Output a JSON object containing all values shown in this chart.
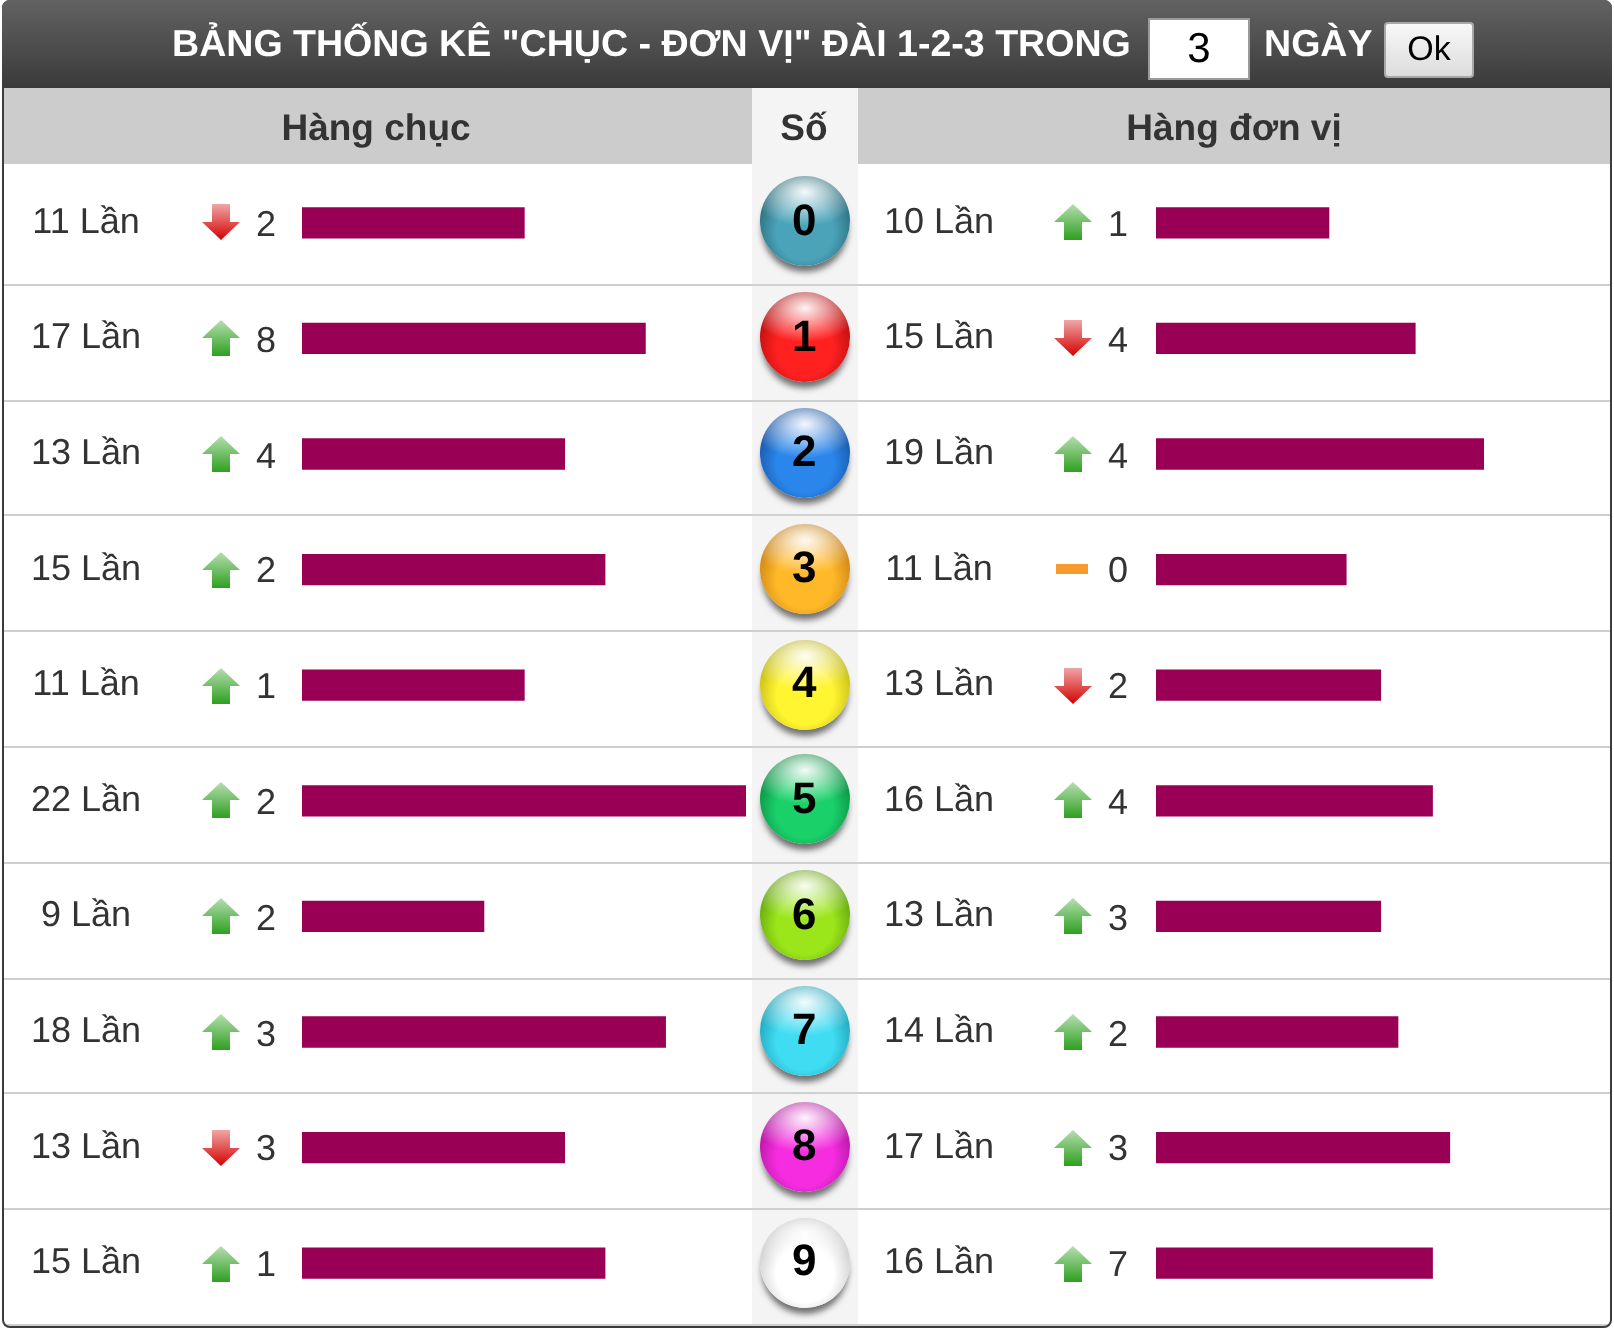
{
  "chart_data": [
    {
      "type": "other",
      "title": "BẢNG THỐNG KÊ \"CHỤC - ĐƠN VỊ\" ĐÀI 1-2-3 TRONG",
      "annotations": [
        "3",
        "NGÀY",
        "Ok"
      ]
    },
    {
      "type": "bar",
      "orientation": "horizontal",
      "title": "Hàng chục",
      "ylabel": "Số",
      "categories": [
        "0",
        "1",
        "2",
        "3",
        "4",
        "5",
        "6",
        "7",
        "8",
        "9"
      ],
      "values": [
        11,
        17,
        13,
        15,
        11,
        22,
        9,
        18,
        13,
        15
      ],
      "value_labels": [
        "11 Lần",
        "17 Lần",
        "13 Lần",
        "15 Lần",
        "11 Lần",
        "22 Lần",
        "9 Lần",
        "18 Lần",
        "13 Lần",
        "15 Lần"
      ],
      "color": "#990055",
      "xlim": [
        0,
        22
      ],
      "tick_labels": "y"
    },
    {
      "type": "other",
      "values": [
        2,
        8,
        4,
        2,
        1,
        2,
        2,
        3,
        3,
        1
      ],
      "colors": [
        "#d40000",
        "#2ea01f",
        "#2ea01f",
        "#2ea01f",
        "#2ea01f",
        "#2ea01f",
        "#2ea01f",
        "#2ea01f",
        "#d40000",
        "#2ea01f"
      ],
      "data_labels": true
    },
    {
      "type": "bar",
      "orientation": "horizontal",
      "title": "Hàng đơn vị",
      "categories": [
        "0",
        "1",
        "2",
        "3",
        "4",
        "5",
        "6",
        "7",
        "8",
        "9"
      ],
      "values": [
        10,
        15,
        19,
        11,
        13,
        16,
        13,
        14,
        17,
        16
      ],
      "value_labels": [
        "10 Lần",
        "15 Lần",
        "19 Lần",
        "11 Lần",
        "13 Lần",
        "16 Lần",
        "13 Lần",
        "14 Lần",
        "17 Lần",
        "16 Lần"
      ],
      "color": "#990055",
      "xlim": [
        0,
        19
      ],
      "tick_labels": false
    },
    {
      "type": "other",
      "values": [
        1,
        4,
        4,
        0,
        2,
        4,
        3,
        2,
        3,
        7
      ],
      "colors": [
        "#2ea01f",
        "#d40000",
        "#2ea01f",
        "#f99b2c",
        "#d40000",
        "#2ea01f",
        "#2ea01f",
        "#2ea01f",
        "#2ea01f",
        "#2ea01f"
      ],
      "data_labels": true
    }
  ]
}
